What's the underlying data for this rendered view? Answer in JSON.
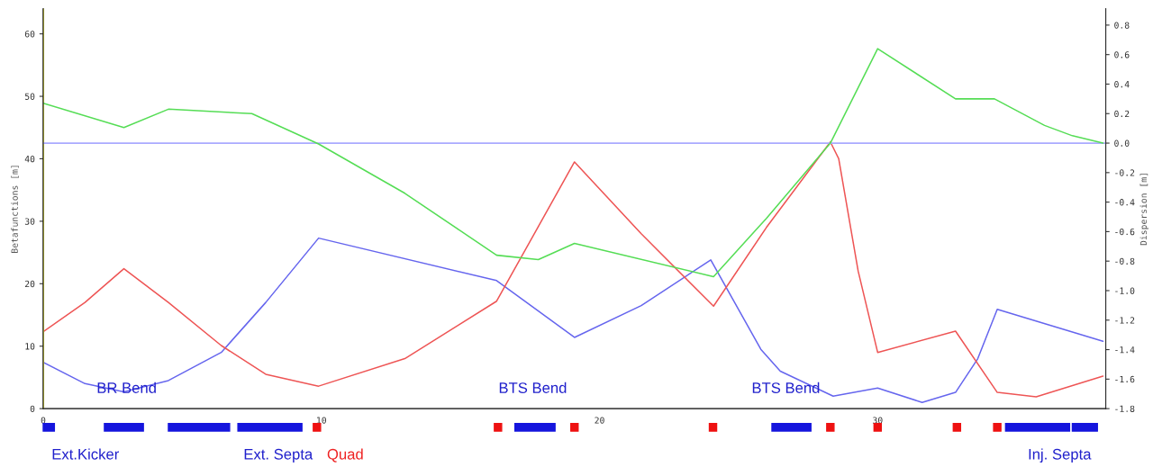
{
  "chart_data": {
    "type": "line",
    "ylabel": "Betafunctions [m]",
    "y2label": "Dispersion [m]",
    "xlim": [
      0,
      38.2
    ],
    "xticks": [
      0,
      10,
      20,
      30
    ],
    "ylim": [
      0,
      64
    ],
    "yticks": [
      0,
      10,
      20,
      30,
      40,
      50,
      60
    ],
    "y2lim": [
      -1.8,
      0.91
    ],
    "y2ticks": [
      {
        "value": -1.8,
        "label": "-1.8"
      },
      {
        "value": -1.6,
        "label": "-1.6"
      },
      {
        "value": -1.4,
        "label": "-1.4"
      },
      {
        "value": -1.2,
        "label": "-1.2"
      },
      {
        "value": -1.0,
        "label": "-1.0"
      },
      {
        "value": -0.8,
        "label": "-0.8"
      },
      {
        "value": -0.6,
        "label": "-0.6"
      },
      {
        "value": -0.4,
        "label": "-0.4"
      },
      {
        "value": -0.2,
        "label": "-0.2"
      },
      {
        "value": 0,
        "label": "0.0"
      },
      {
        "value": 0.2,
        "label": "0.2"
      },
      {
        "value": 0.4,
        "label": "0.4"
      },
      {
        "value": 0.6,
        "label": "0.6"
      },
      {
        "value": 0.8,
        "label": "0.8"
      }
    ],
    "grid": false,
    "legend": false,
    "marker": "none",
    "line_style": "solid",
    "series": [
      {
        "color": "#6666ee",
        "x": [
          0,
          1.5,
          2.9,
          4.5,
          6.4,
          8,
          9.9,
          16.3,
          19.1,
          21.5,
          24.0,
          25.8,
          26.5,
          28.4,
          30.0,
          31.6,
          32.8,
          33.6,
          34.3,
          38.1
        ],
        "values": [
          7.4,
          4,
          2.7,
          4.5,
          9,
          17,
          27.3,
          20.5,
          11.4,
          16.5,
          23.8,
          9.5,
          6,
          2.0,
          3.3,
          1.0,
          2.6,
          8,
          15.9,
          10.8
        ]
      },
      {
        "color": "#ee5555",
        "x": [
          0,
          1.5,
          2.9,
          4.5,
          6.4,
          8,
          9.9,
          13,
          16.3,
          19.1,
          21.5,
          24.1,
          26,
          28.3,
          28.6,
          29.3,
          30.0,
          32.8,
          34.3,
          35.7,
          38.1
        ],
        "values": [
          12.3,
          17,
          22.4,
          17,
          10.1,
          5.5,
          3.6,
          8,
          17.2,
          39.5,
          28,
          16.4,
          29,
          42.7,
          40,
          22,
          9.0,
          12.4,
          2.6,
          1.9,
          5.2
        ]
      },
      {
        "color": "#55dd55",
        "axis": "y2",
        "x": [
          0,
          2.9,
          4.5,
          7.5,
          9.9,
          13,
          16.3,
          17.8,
          19.1,
          24.1,
          26,
          28.3,
          30.0,
          32.8,
          34.2,
          36,
          37,
          38.1
        ],
        "values": [
          0.27,
          0.105,
          0.23,
          0.2,
          -0.006,
          -0.34,
          -0.76,
          -0.79,
          -0.68,
          -0.905,
          -0.51,
          0.0,
          0.64,
          0.3,
          0.3,
          0.12,
          0.05,
          0.0
        ]
      }
    ],
    "ref_lines": [
      {
        "axis": "x",
        "value": 0,
        "color": "#ffff33"
      },
      {
        "axis": "y2",
        "value": 0,
        "color": "#aaaaff"
      }
    ],
    "annotations": [
      "BR Bend",
      "BTS Bend",
      "BTS Bend",
      "Ext.Kicker",
      "Ext. Septa",
      "Quad",
      "Inj. Septa"
    ]
  }
}
